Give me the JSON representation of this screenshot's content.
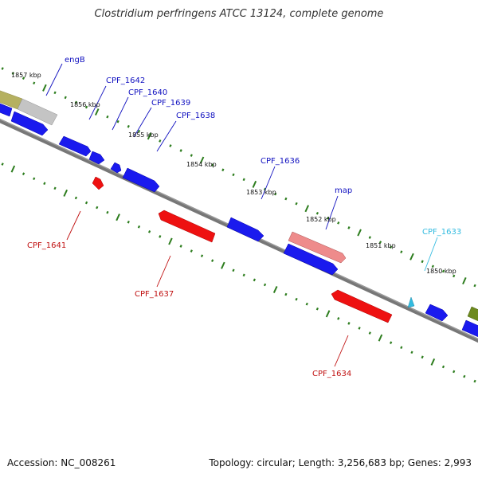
{
  "title": "Clostridium perfringens ATCC 13124, complete genome",
  "footer": {
    "accession": "Accession: NC_008261",
    "summary": "Topology: circular; Length: 3,256,683 bp; Genes: 2,993"
  },
  "kbp_labels": [
    "1857 kbp",
    "1856 kbp",
    "1855 kbp",
    "1854 kbp",
    "1853 kbp",
    "1852 kbp",
    "1851 kbp",
    "1850 kbp"
  ],
  "genes": [
    {
      "name": "engB",
      "strand": "forward"
    },
    {
      "name": "CPF_1642",
      "strand": "forward"
    },
    {
      "name": "CPF_1640",
      "strand": "forward"
    },
    {
      "name": "CPF_1639",
      "strand": "forward"
    },
    {
      "name": "CPF_1638",
      "strand": "forward"
    },
    {
      "name": "CPF_1636",
      "strand": "forward"
    },
    {
      "name": "map",
      "strand": "forward"
    },
    {
      "name": "CPF_1633",
      "strand": "forward"
    },
    {
      "name": "CPF_1641",
      "strand": "reverse"
    },
    {
      "name": "CPF_1637",
      "strand": "reverse"
    },
    {
      "name": "CPF_1634",
      "strand": "reverse"
    }
  ],
  "colors": {
    "forward_gene": "#1a1aee",
    "reverse_gene": "#ee1111",
    "forward_label": "#1010c0",
    "reverse_label": "#c01010",
    "highlight_label": "#33bbe0",
    "tick": "#2d7d1e",
    "backbone": "#777777"
  }
}
